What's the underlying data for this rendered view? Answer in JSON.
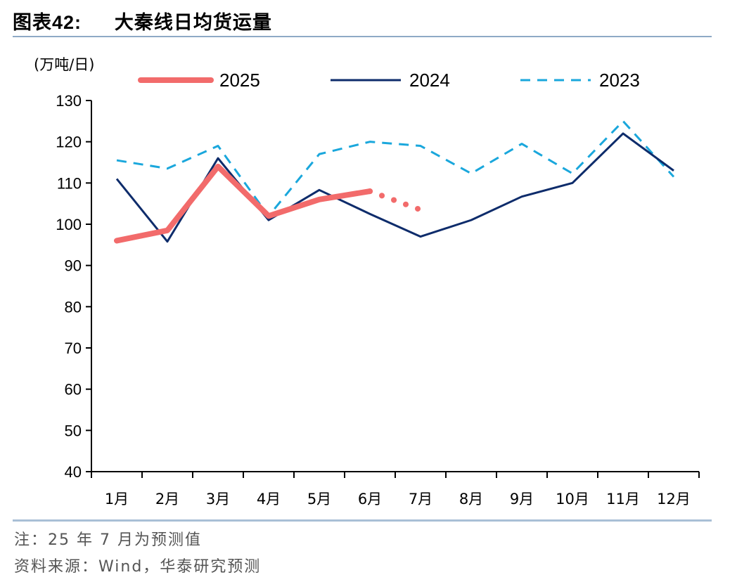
{
  "figure": {
    "label": "图表",
    "number": "42:",
    "title": "大秦线日均货运量"
  },
  "notes": {
    "note": "注：25 年 7 月为预测值",
    "source": "资料来源：Wind，华泰研究预测"
  },
  "chart_data": {
    "type": "line",
    "title": "大秦线日均货运量",
    "ylabel": "(万吨/日)",
    "xlabel": "",
    "ylim": [
      40,
      130
    ],
    "yticks": [
      130,
      120,
      110,
      100,
      90,
      80,
      70,
      60,
      50,
      40
    ],
    "categories": [
      "1月",
      "2月",
      "3月",
      "4月",
      "5月",
      "6月",
      "7月",
      "8月",
      "9月",
      "10月",
      "11月",
      "12月"
    ],
    "grid": false,
    "legend_position": "top",
    "series": [
      {
        "name": "2025",
        "color": "#f26b6b",
        "style": "thick-solid",
        "values": [
          96,
          98.5,
          114,
          102,
          106,
          108,
          null,
          null,
          null,
          null,
          null,
          null
        ],
        "forecast": {
          "from_index": 5,
          "to_index": 6,
          "values": [
            108,
            103.5
          ]
        }
      },
      {
        "name": "2024",
        "color": "#0e2c6b",
        "style": "solid",
        "values": [
          111,
          95.8,
          116,
          101,
          108.3,
          102.5,
          97,
          101,
          106.7,
          110,
          122,
          113
        ]
      },
      {
        "name": "2023",
        "color": "#1aa7dc",
        "style": "dashed",
        "values": [
          115.5,
          113.5,
          119,
          102,
          117,
          120,
          119,
          112.3,
          119.5,
          112.3,
          125,
          111.5
        ]
      }
    ]
  }
}
